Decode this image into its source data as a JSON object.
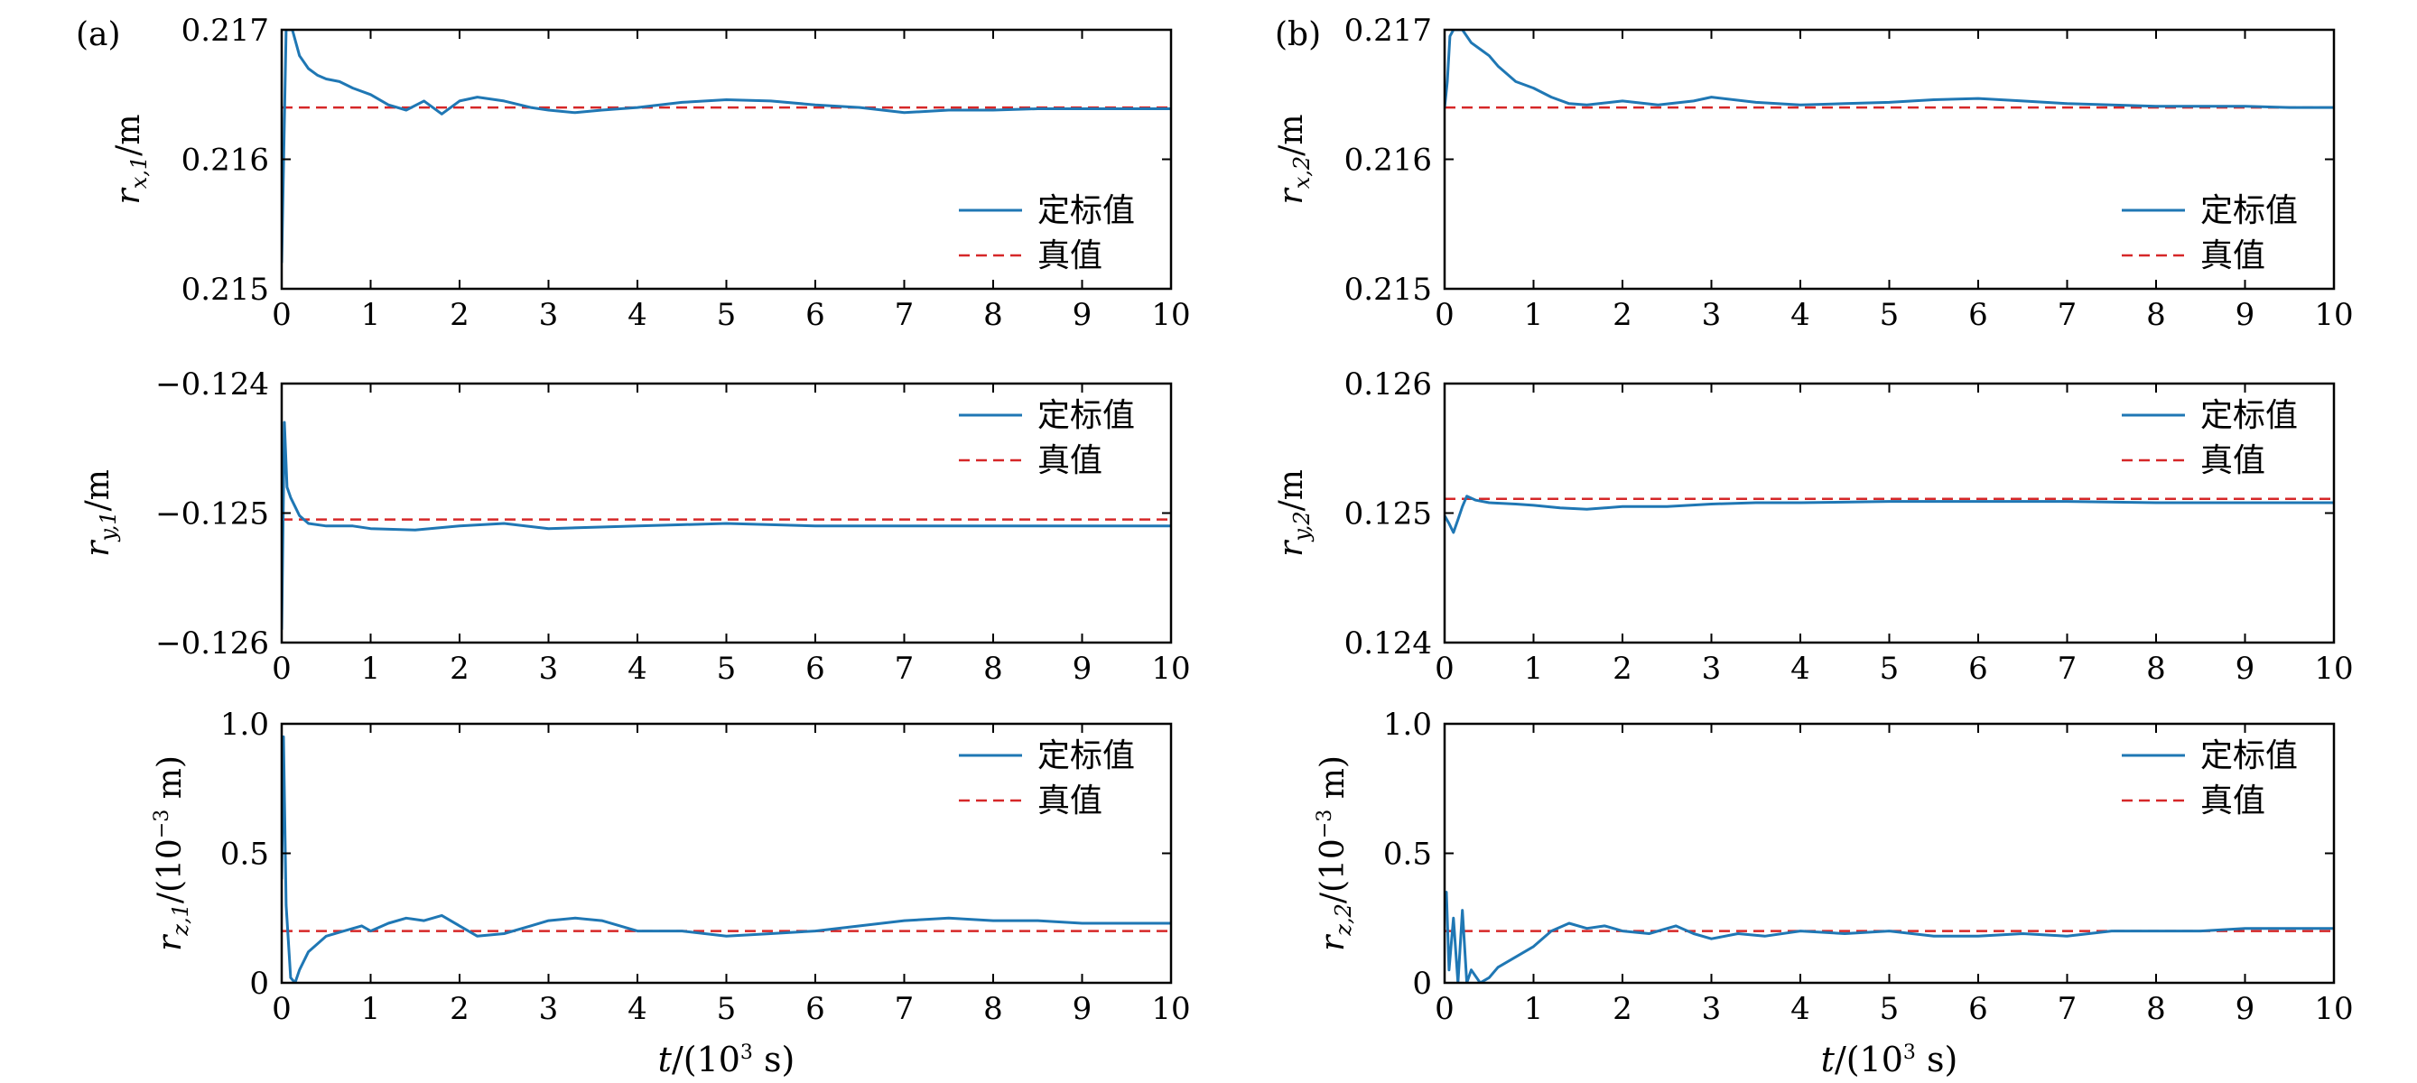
{
  "panel_labels": [
    "(a)",
    "(b)"
  ],
  "legend": {
    "calibrated": "定标值",
    "true": "真值"
  },
  "colors": {
    "calibrated": "#1f77b4",
    "true": "#d62728",
    "axis": "#000000"
  },
  "xlabel": {
    "var": "t",
    "unit_pre": "/(10",
    "sup": "3",
    "unit_post": " s)"
  },
  "chart_data": [
    {
      "id": "a1",
      "type": "line",
      "column": 0,
      "row": 0,
      "ylabel": {
        "var": "r",
        "sub": "x,1",
        "unit": "/m"
      },
      "xlim": [
        0,
        10
      ],
      "ylim": [
        0.215,
        0.217
      ],
      "xticks": [
        0,
        1,
        2,
        3,
        4,
        5,
        6,
        7,
        8,
        9,
        10
      ],
      "xtick_labels": [
        "0",
        "1",
        "2",
        "3",
        "4",
        "5",
        "6",
        "7",
        "8",
        "9",
        "10"
      ],
      "yticks": [
        0.215,
        0.216,
        0.217
      ],
      "ytick_labels": [
        "0.215",
        "0.216",
        "0.217"
      ],
      "true_value": 0.2164,
      "series": [
        {
          "name": "定标值",
          "x": [
            0,
            0.05,
            0.12,
            0.2,
            0.3,
            0.4,
            0.5,
            0.65,
            0.8,
            1.0,
            1.2,
            1.4,
            1.6,
            1.8,
            2.0,
            2.2,
            2.5,
            2.8,
            3.0,
            3.3,
            3.6,
            4.0,
            4.5,
            5.0,
            5.5,
            6.0,
            6.5,
            7.0,
            7.5,
            8.0,
            8.5,
            9.0,
            9.5,
            10.0
          ],
          "y": [
            0.2152,
            0.217,
            0.217,
            0.2168,
            0.2167,
            0.21665,
            0.21662,
            0.2166,
            0.21655,
            0.2165,
            0.21642,
            0.21638,
            0.21645,
            0.21635,
            0.21645,
            0.21648,
            0.21645,
            0.2164,
            0.21638,
            0.21636,
            0.21638,
            0.2164,
            0.21644,
            0.21646,
            0.21645,
            0.21642,
            0.2164,
            0.21636,
            0.21638,
            0.21638,
            0.21639,
            0.21639,
            0.21639,
            0.21639
          ]
        }
      ]
    },
    {
      "id": "a2",
      "type": "line",
      "column": 0,
      "row": 1,
      "ylabel": {
        "var": "r",
        "sub": "y,1",
        "unit": "/m"
      },
      "xlim": [
        0,
        10
      ],
      "ylim": [
        -0.126,
        -0.124
      ],
      "xticks": [
        0,
        1,
        2,
        3,
        4,
        5,
        6,
        7,
        8,
        9,
        10
      ],
      "xtick_labels": [
        "0",
        "1",
        "2",
        "3",
        "4",
        "5",
        "6",
        "7",
        "8",
        "9",
        "10"
      ],
      "yticks": [
        -0.126,
        -0.125,
        -0.124
      ],
      "ytick_labels": [
        "−0.126",
        "−0.125",
        "−0.124"
      ],
      "true_value": -0.12505,
      "series": [
        {
          "name": "定标值",
          "x": [
            0,
            0.03,
            0.06,
            0.1,
            0.15,
            0.2,
            0.3,
            0.5,
            0.8,
            1.0,
            1.5,
            2.0,
            2.5,
            3.0,
            3.5,
            4.0,
            4.5,
            5.0,
            5.5,
            6.0,
            7.0,
            8.0,
            9.0,
            10.0
          ],
          "y": [
            -0.1259,
            -0.1243,
            -0.1248,
            -0.12488,
            -0.12495,
            -0.12502,
            -0.12508,
            -0.1251,
            -0.1251,
            -0.12512,
            -0.12513,
            -0.1251,
            -0.12508,
            -0.12512,
            -0.12511,
            -0.1251,
            -0.12509,
            -0.12508,
            -0.12509,
            -0.1251,
            -0.1251,
            -0.1251,
            -0.1251,
            -0.1251
          ]
        }
      ]
    },
    {
      "id": "a3",
      "type": "line",
      "column": 0,
      "row": 2,
      "ylabel": {
        "var": "r",
        "sub": "z,1",
        "unit": "/(10",
        "sup": "−3",
        "unit_post": " m)"
      },
      "xlim": [
        0,
        10
      ],
      "ylim": [
        0,
        1.0
      ],
      "xticks": [
        0,
        1,
        2,
        3,
        4,
        5,
        6,
        7,
        8,
        9,
        10
      ],
      "xtick_labels": [
        "0",
        "1",
        "2",
        "3",
        "4",
        "5",
        "6",
        "7",
        "8",
        "9",
        "10"
      ],
      "yticks": [
        0,
        0.5,
        1.0
      ],
      "ytick_labels": [
        "0",
        "0.5",
        "1.0"
      ],
      "true_value": 0.2,
      "series": [
        {
          "name": "定标值",
          "x": [
            0,
            0.02,
            0.05,
            0.1,
            0.15,
            0.2,
            0.3,
            0.4,
            0.5,
            0.7,
            0.9,
            1.0,
            1.2,
            1.4,
            1.6,
            1.8,
            2.0,
            2.2,
            2.5,
            2.8,
            3.0,
            3.3,
            3.6,
            4.0,
            4.5,
            5.0,
            5.5,
            6.0,
            6.5,
            7.0,
            7.5,
            8.0,
            8.5,
            9.0,
            9.5,
            10.0
          ],
          "y": [
            0.4,
            0.95,
            0.3,
            0.02,
            0.0,
            0.05,
            0.12,
            0.15,
            0.18,
            0.2,
            0.22,
            0.2,
            0.23,
            0.25,
            0.24,
            0.26,
            0.22,
            0.18,
            0.19,
            0.22,
            0.24,
            0.25,
            0.24,
            0.2,
            0.2,
            0.18,
            0.19,
            0.2,
            0.22,
            0.24,
            0.25,
            0.24,
            0.24,
            0.23,
            0.23,
            0.23
          ]
        }
      ]
    },
    {
      "id": "b1",
      "type": "line",
      "column": 1,
      "row": 0,
      "ylabel": {
        "var": "r",
        "sub": "x,2",
        "unit": "/m"
      },
      "xlim": [
        0,
        10
      ],
      "ylim": [
        0.215,
        0.217
      ],
      "xticks": [
        0,
        1,
        2,
        3,
        4,
        5,
        6,
        7,
        8,
        9,
        10
      ],
      "xtick_labels": [
        "0",
        "1",
        "2",
        "3",
        "4",
        "5",
        "6",
        "7",
        "8",
        "9",
        "10"
      ],
      "yticks": [
        0.215,
        0.216,
        0.217
      ],
      "ytick_labels": [
        "0.215",
        "0.216",
        "0.217"
      ],
      "true_value": 0.2164,
      "series": [
        {
          "name": "定标值",
          "x": [
            0,
            0.03,
            0.06,
            0.1,
            0.2,
            0.3,
            0.4,
            0.5,
            0.6,
            0.8,
            1.0,
            1.2,
            1.4,
            1.6,
            2.0,
            2.4,
            2.8,
            3.0,
            3.5,
            4.0,
            4.5,
            5.0,
            5.5,
            6.0,
            6.5,
            7.0,
            7.5,
            8.0,
            8.5,
            9.0,
            9.5,
            10.0
          ],
          "y": [
            0.2164,
            0.2166,
            0.21695,
            0.217,
            0.217,
            0.2169,
            0.21685,
            0.2168,
            0.21672,
            0.2166,
            0.21655,
            0.21648,
            0.21643,
            0.21642,
            0.21645,
            0.21642,
            0.21645,
            0.21648,
            0.21644,
            0.21642,
            0.21643,
            0.21644,
            0.21646,
            0.21647,
            0.21645,
            0.21643,
            0.21642,
            0.21641,
            0.21641,
            0.21641,
            0.2164,
            0.2164
          ]
        }
      ]
    },
    {
      "id": "b2",
      "type": "line",
      "column": 1,
      "row": 1,
      "ylabel": {
        "var": "r",
        "sub": "y,2",
        "unit": "/m"
      },
      "xlim": [
        0,
        10
      ],
      "ylim": [
        0.124,
        0.126
      ],
      "xticks": [
        0,
        1,
        2,
        3,
        4,
        5,
        6,
        7,
        8,
        9,
        10
      ],
      "xtick_labels": [
        "0",
        "1",
        "2",
        "3",
        "4",
        "5",
        "6",
        "7",
        "8",
        "9",
        "10"
      ],
      "yticks": [
        0.124,
        0.125,
        0.126
      ],
      "ytick_labels": [
        "0.124",
        "0.125",
        "0.126"
      ],
      "true_value": 0.12511,
      "series": [
        {
          "name": "定标值",
          "x": [
            0,
            0.05,
            0.1,
            0.15,
            0.2,
            0.25,
            0.35,
            0.5,
            0.8,
            1.0,
            1.3,
            1.6,
            2.0,
            2.5,
            3.0,
            3.5,
            4.0,
            5.0,
            6.0,
            7.0,
            8.0,
            9.0,
            10.0
          ],
          "y": [
            0.12498,
            0.12492,
            0.12485,
            0.12495,
            0.12505,
            0.12513,
            0.1251,
            0.12508,
            0.12507,
            0.12506,
            0.12504,
            0.12503,
            0.12505,
            0.12505,
            0.12507,
            0.12508,
            0.12508,
            0.12509,
            0.12509,
            0.12509,
            0.12508,
            0.12508,
            0.12508
          ]
        }
      ]
    },
    {
      "id": "b3",
      "type": "line",
      "column": 1,
      "row": 2,
      "ylabel": {
        "var": "r",
        "sub": "z,2",
        "unit": "/(10",
        "sup": "−3",
        "unit_post": " m)"
      },
      "xlim": [
        0,
        10
      ],
      "ylim": [
        0,
        1.0
      ],
      "xticks": [
        0,
        1,
        2,
        3,
        4,
        5,
        6,
        7,
        8,
        9,
        10
      ],
      "xtick_labels": [
        "0",
        "1",
        "2",
        "3",
        "4",
        "5",
        "6",
        "7",
        "8",
        "9",
        "10"
      ],
      "yticks": [
        0,
        0.5,
        1.0
      ],
      "ytick_labels": [
        "0",
        "0.5",
        "1.0"
      ],
      "true_value": 0.2,
      "series": [
        {
          "name": "定标值",
          "x": [
            0,
            0.02,
            0.05,
            0.1,
            0.15,
            0.2,
            0.25,
            0.3,
            0.4,
            0.5,
            0.6,
            0.8,
            1.0,
            1.2,
            1.4,
            1.6,
            1.8,
            2.0,
            2.3,
            2.6,
            2.8,
            3.0,
            3.3,
            3.6,
            4.0,
            4.5,
            5.0,
            5.5,
            6.0,
            6.5,
            7.0,
            7.5,
            8.0,
            8.5,
            9.0,
            9.5,
            10.0
          ],
          "y": [
            0.3,
            0.35,
            0.05,
            0.25,
            0.0,
            0.28,
            0.0,
            0.05,
            0.0,
            0.02,
            0.06,
            0.1,
            0.14,
            0.2,
            0.23,
            0.21,
            0.22,
            0.2,
            0.19,
            0.22,
            0.19,
            0.17,
            0.19,
            0.18,
            0.2,
            0.19,
            0.2,
            0.18,
            0.18,
            0.19,
            0.18,
            0.2,
            0.2,
            0.2,
            0.21,
            0.21,
            0.21
          ]
        }
      ]
    }
  ]
}
